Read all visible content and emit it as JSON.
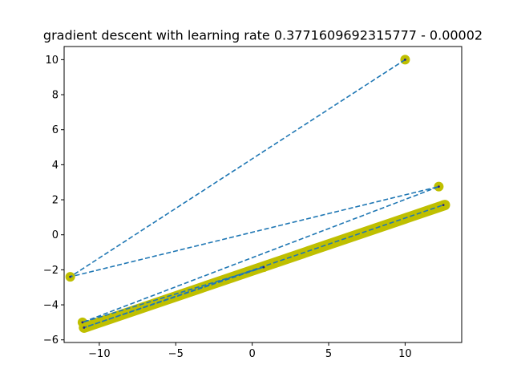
{
  "chart_data": {
    "type": "scatter",
    "title": "gradient descent with learning rate 0.3771609692315777 - 0.00002",
    "xlabel": "",
    "ylabel": "",
    "xlim": [
      -12.3,
      13.7
    ],
    "ylim": [
      -6.15,
      10.75
    ],
    "xticks": [
      -10,
      -5,
      0,
      5,
      10
    ],
    "xtick_labels": [
      "−10",
      "−5",
      "0",
      "5",
      "10"
    ],
    "yticks": [
      -6,
      -4,
      -2,
      0,
      2,
      4,
      6,
      8,
      10
    ],
    "ytick_labels": [
      "−6",
      "−4",
      "−2",
      "0",
      "2",
      "4",
      "6",
      "8",
      "10"
    ],
    "grid": false,
    "colors": {
      "marker": "#bfbf00",
      "path": "#1f77b4",
      "center": "#1f1f8f",
      "axes": "#000000"
    },
    "series": [
      {
        "marker": "filled-circle",
        "line": "dashed",
        "points": [
          [
            10.0,
            10.0
          ],
          [
            -11.9,
            -2.4
          ],
          [
            12.2,
            2.75
          ],
          [
            -11.1,
            -5.0
          ],
          [
            0.75,
            -1.85
          ],
          [
            -11.0,
            -5.3
          ],
          [
            12.5,
            1.7
          ]
        ],
        "dense_band": {
          "x_start": -11.0,
          "y_start": -5.3,
          "x_end": 12.6,
          "y_end": 1.7
        }
      }
    ]
  }
}
